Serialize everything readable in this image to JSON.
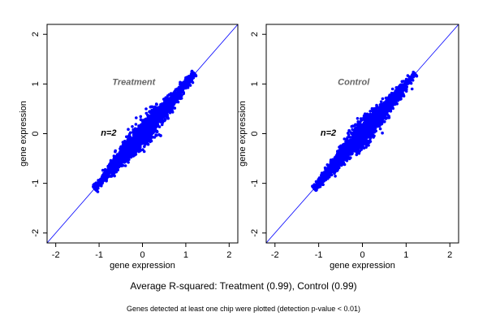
{
  "colors": {
    "points": "#0000ff",
    "diagonal": "#0000ff",
    "axes": "#000000",
    "title": "#666666"
  },
  "chart_data": [
    {
      "type": "scatter",
      "title": "Treatment",
      "annotation": "n=2",
      "xlabel": "gene expression",
      "ylabel": "gene expression",
      "xlim": [
        -2.2,
        2.2
      ],
      "ylim": [
        -2.2,
        2.2
      ],
      "xticks": [
        "-2",
        "-1",
        "0",
        "1",
        "2"
      ],
      "yticks": [
        "-2",
        "-1",
        "0",
        "1",
        "2"
      ],
      "reference_line": "y = x",
      "cloud": {
        "x_range": [
          -1.1,
          1.2
        ],
        "correlation": 0.99
      },
      "outliers": [
        {
          "x": 0.33,
          "y": 0.05
        },
        {
          "x": 0.42,
          "y": -0.04
        }
      ]
    },
    {
      "type": "scatter",
      "title": "Control",
      "annotation": "n=2",
      "xlabel": "gene expression",
      "ylabel": "gene expression",
      "xlim": [
        -2.2,
        2.2
      ],
      "ylim": [
        -2.2,
        2.2
      ],
      "xticks": [
        "-2",
        "-1",
        "0",
        "1",
        "2"
      ],
      "yticks": [
        "-2",
        "-1",
        "0",
        "1",
        "2"
      ],
      "reference_line": "y = x",
      "cloud": {
        "x_range": [
          -1.1,
          1.2
        ],
        "correlation": 0.99
      },
      "outliers": [
        {
          "x": -0.3,
          "y": 0.05
        },
        {
          "x": 0.15,
          "y": -0.03
        }
      ]
    }
  ],
  "caption_main": "Average R-squared: Treatment (0.99), Control (0.99)",
  "caption_note": "Genes detected at least one chip were plotted (detection p-value < 0.01)"
}
